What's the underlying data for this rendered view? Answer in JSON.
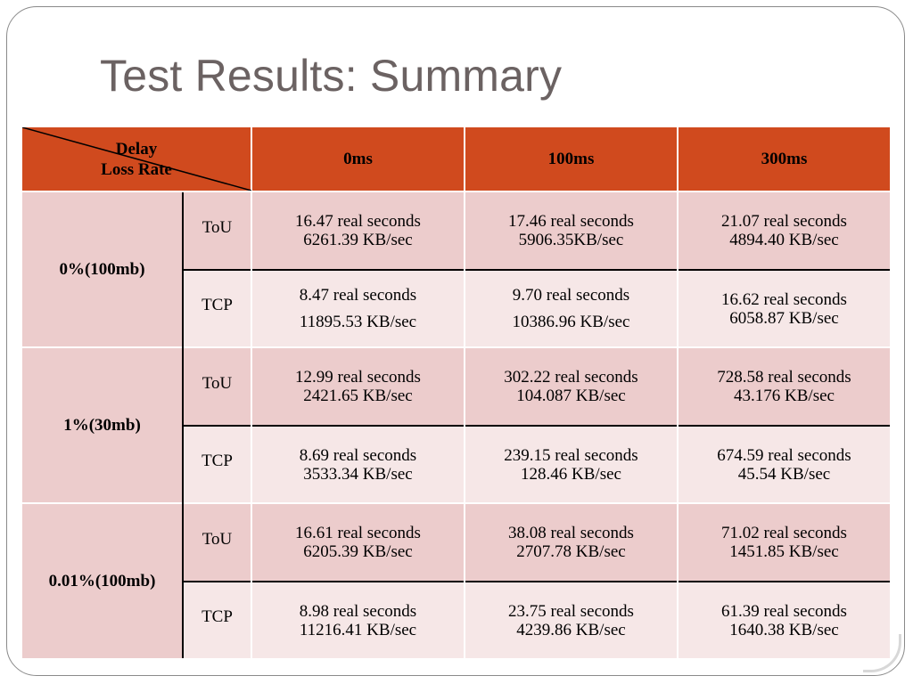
{
  "slide": {
    "title": "Test Results: Summary"
  },
  "table": {
    "corner": {
      "top_label": "Delay",
      "bottom_label": "Loss Rate"
    },
    "columns": [
      "0ms",
      "100ms",
      "300ms"
    ],
    "groups": [
      {
        "label": "0%(100mb)",
        "rows": [
          {
            "protocol": "ToU",
            "cells": [
              [
                "16.47 real seconds",
                "6261.39 KB/sec"
              ],
              [
                "17.46 real seconds",
                "5906.35KB/sec"
              ],
              [
                "21.07 real seconds",
                "4894.40 KB/sec"
              ]
            ]
          },
          {
            "protocol": "TCP",
            "cells": [
              [
                "8.47 real seconds",
                "11895.53 KB/sec"
              ],
              [
                "9.70 real seconds",
                "10386.96 KB/sec"
              ],
              [
                "16.62 real seconds",
                "6058.87 KB/sec"
              ]
            ]
          }
        ]
      },
      {
        "label": "1%(30mb)",
        "rows": [
          {
            "protocol": "ToU",
            "cells": [
              [
                "12.99 real seconds",
                "2421.65 KB/sec"
              ],
              [
                "302.22 real seconds",
                "104.087 KB/sec"
              ],
              [
                "728.58 real seconds",
                "43.176 KB/sec"
              ]
            ]
          },
          {
            "protocol": "TCP",
            "cells": [
              [
                "8.69 real seconds",
                "3533.34 KB/sec"
              ],
              [
                "239.15 real seconds",
                "128.46 KB/sec"
              ],
              [
                "674.59 real seconds",
                "45.54 KB/sec"
              ]
            ]
          }
        ]
      },
      {
        "label": "0.01%(100mb)",
        "rows": [
          {
            "protocol": "ToU",
            "cells": [
              [
                "16.61 real seconds",
                "6205.39 KB/sec"
              ],
              [
                "38.08 real seconds",
                "2707.78 KB/sec"
              ],
              [
                "71.02 real seconds",
                "1451.85 KB/sec"
              ]
            ]
          },
          {
            "protocol": "TCP",
            "cells": [
              [
                "8.98 real seconds",
                "11216.41 KB/sec"
              ],
              [
                "23.75 real seconds",
                "4239.86 KB/sec"
              ],
              [
                "61.39 real seconds",
                "1640.38 KB/sec"
              ]
            ]
          }
        ]
      }
    ]
  }
}
